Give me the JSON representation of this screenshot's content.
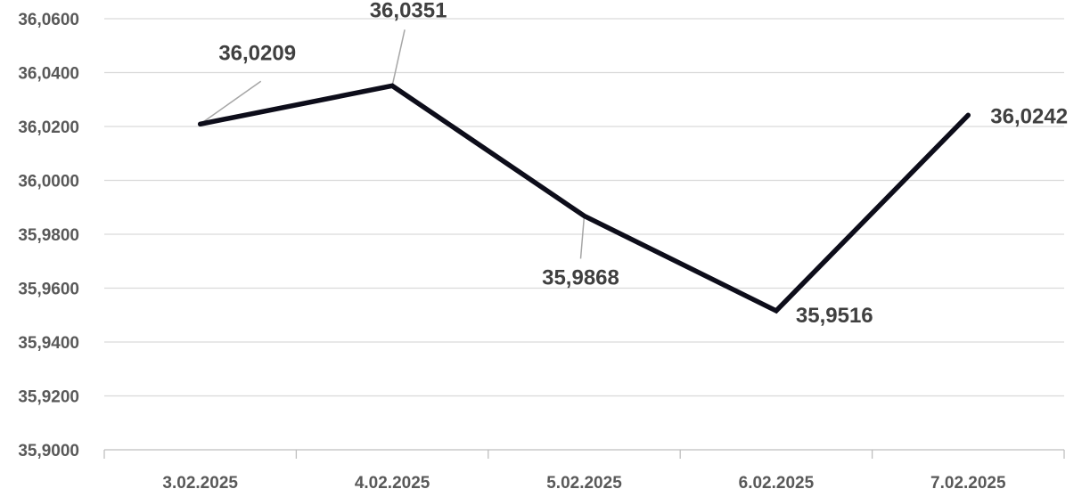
{
  "chart_data": {
    "type": "line",
    "title": "",
    "xlabel": "",
    "ylabel": "",
    "categories": [
      "3.02.2025",
      "4.02.2025",
      "5.02.2025",
      "6.02.2025",
      "7.02.2025"
    ],
    "series": [
      {
        "values": [
          36.0209,
          36.0351,
          35.9868,
          35.9516,
          36.0242
        ],
        "color": "#0d0d1a"
      }
    ],
    "data_labels": [
      "36,0209",
      "36,0351",
      "35,9868",
      "35,9516",
      "36,0242"
    ],
    "y_ticks": [
      "35,9000",
      "35,9200",
      "35,9400",
      "35,9600",
      "35,9800",
      "36,0000",
      "36,0200",
      "36,0400",
      "36,0600"
    ],
    "y_tick_values": [
      35.9,
      35.92,
      35.94,
      35.96,
      35.98,
      36.0,
      36.02,
      36.04,
      36.06
    ],
    "ylim": [
      35.9,
      36.06
    ],
    "grid": true,
    "legend": "none",
    "gridline_color": "#d9d9d9",
    "axis_color": "#bfbfbf",
    "leader_color": "#a6a6a6"
  }
}
